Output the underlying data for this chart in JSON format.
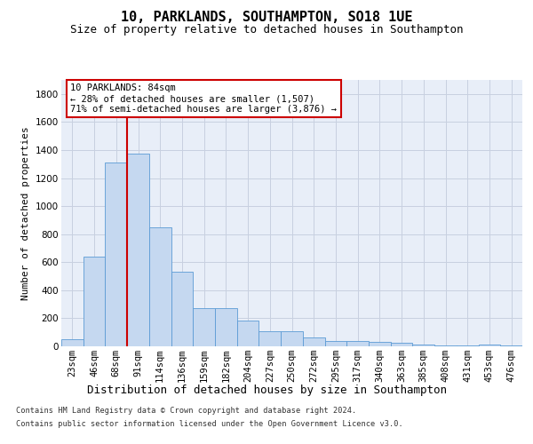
{
  "title": "10, PARKLANDS, SOUTHAMPTON, SO18 1UE",
  "subtitle": "Size of property relative to detached houses in Southampton",
  "xlabel": "Distribution of detached houses by size in Southampton",
  "ylabel": "Number of detached properties",
  "categories": [
    "23sqm",
    "46sqm",
    "68sqm",
    "91sqm",
    "114sqm",
    "136sqm",
    "159sqm",
    "182sqm",
    "204sqm",
    "227sqm",
    "250sqm",
    "272sqm",
    "295sqm",
    "317sqm",
    "340sqm",
    "363sqm",
    "385sqm",
    "408sqm",
    "431sqm",
    "453sqm",
    "476sqm"
  ],
  "values": [
    50,
    640,
    1310,
    1375,
    850,
    530,
    275,
    275,
    185,
    105,
    105,
    65,
    40,
    40,
    30,
    25,
    15,
    5,
    5,
    15,
    5
  ],
  "bar_color": "#c5d8f0",
  "bar_edge_color": "#5b9bd5",
  "vline_x": 2.5,
  "vline_color": "#cc0000",
  "annotation_title": "10 PARKLANDS: 84sqm",
  "annotation_line1": "← 28% of detached houses are smaller (1,507)",
  "annotation_line2": "71% of semi-detached houses are larger (3,876) →",
  "annotation_box_color": "#cc0000",
  "ylim": [
    0,
    1900
  ],
  "yticks": [
    0,
    200,
    400,
    600,
    800,
    1000,
    1200,
    1400,
    1600,
    1800
  ],
  "grid_color": "#c8d0e0",
  "background_color": "#e8eef8",
  "title_fontsize": 11,
  "subtitle_fontsize": 9,
  "xlabel_fontsize": 9,
  "ylabel_fontsize": 8,
  "tick_fontsize": 7.5,
  "footer_line1": "Contains HM Land Registry data © Crown copyright and database right 2024.",
  "footer_line2": "Contains public sector information licensed under the Open Government Licence v3.0."
}
